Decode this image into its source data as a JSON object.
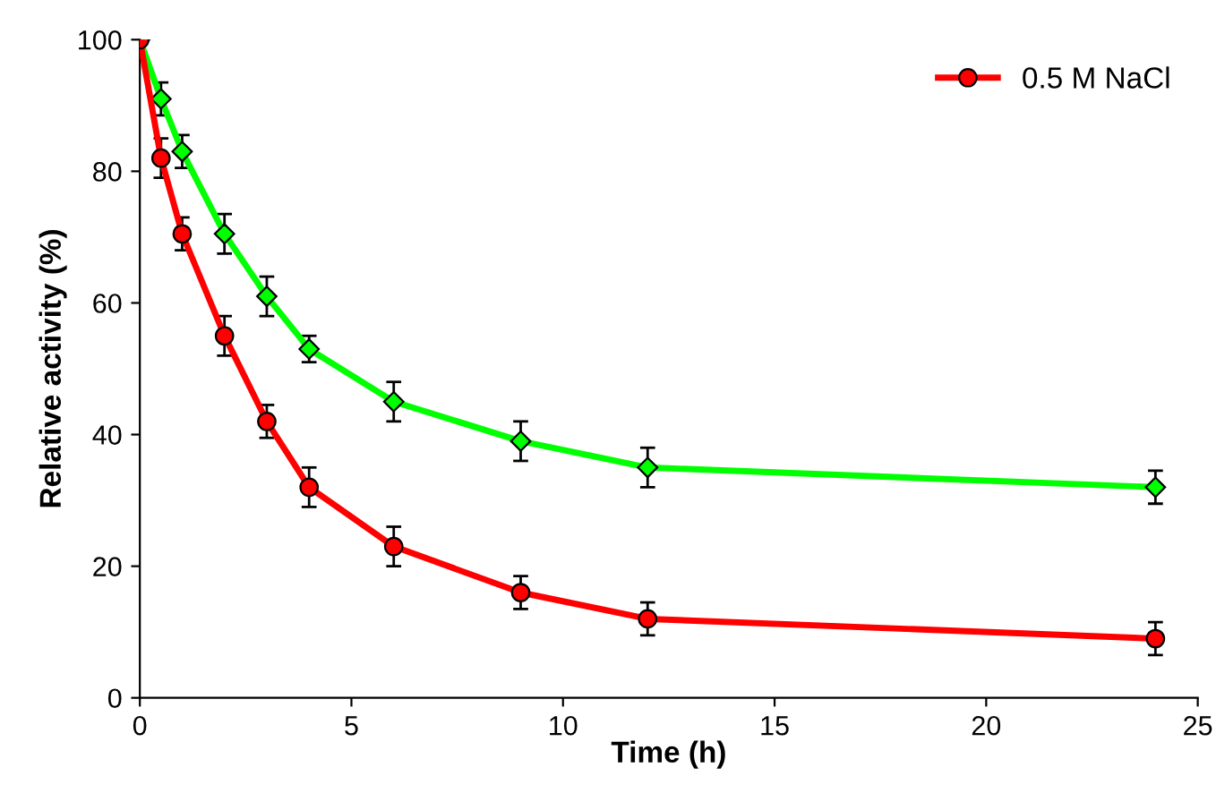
{
  "chart_data": {
    "type": "line",
    "xlabel": "Time (h)",
    "ylabel": "Relative activity (%)",
    "x": [
      0,
      0.5,
      1,
      2,
      3,
      4,
      6,
      9,
      12,
      24
    ],
    "series": [
      {
        "color": "#00ff00",
        "marker": "diamond",
        "values": [
          100,
          91,
          83,
          70.5,
          61,
          53,
          45,
          39,
          35,
          32
        ],
        "errors": [
          2,
          2.5,
          2.5,
          3,
          3,
          2,
          3,
          3,
          3,
          2.5
        ]
      },
      {
        "name": "0.5 M NaCl",
        "color": "#ff0000",
        "marker": "circle",
        "values": [
          100,
          82,
          70.5,
          55,
          42,
          32,
          23,
          16,
          12,
          9
        ],
        "errors": [
          2,
          3,
          2.5,
          3,
          2.5,
          3,
          3,
          2.5,
          2.5,
          2.5
        ]
      }
    ],
    "xlim": [
      0,
      25
    ],
    "xticks": [
      0,
      5,
      10,
      15,
      20,
      25
    ],
    "ylim": [
      0,
      100
    ],
    "yticks": [
      0,
      20,
      40,
      60,
      80,
      100
    ],
    "grid": false,
    "legend": "top right"
  }
}
